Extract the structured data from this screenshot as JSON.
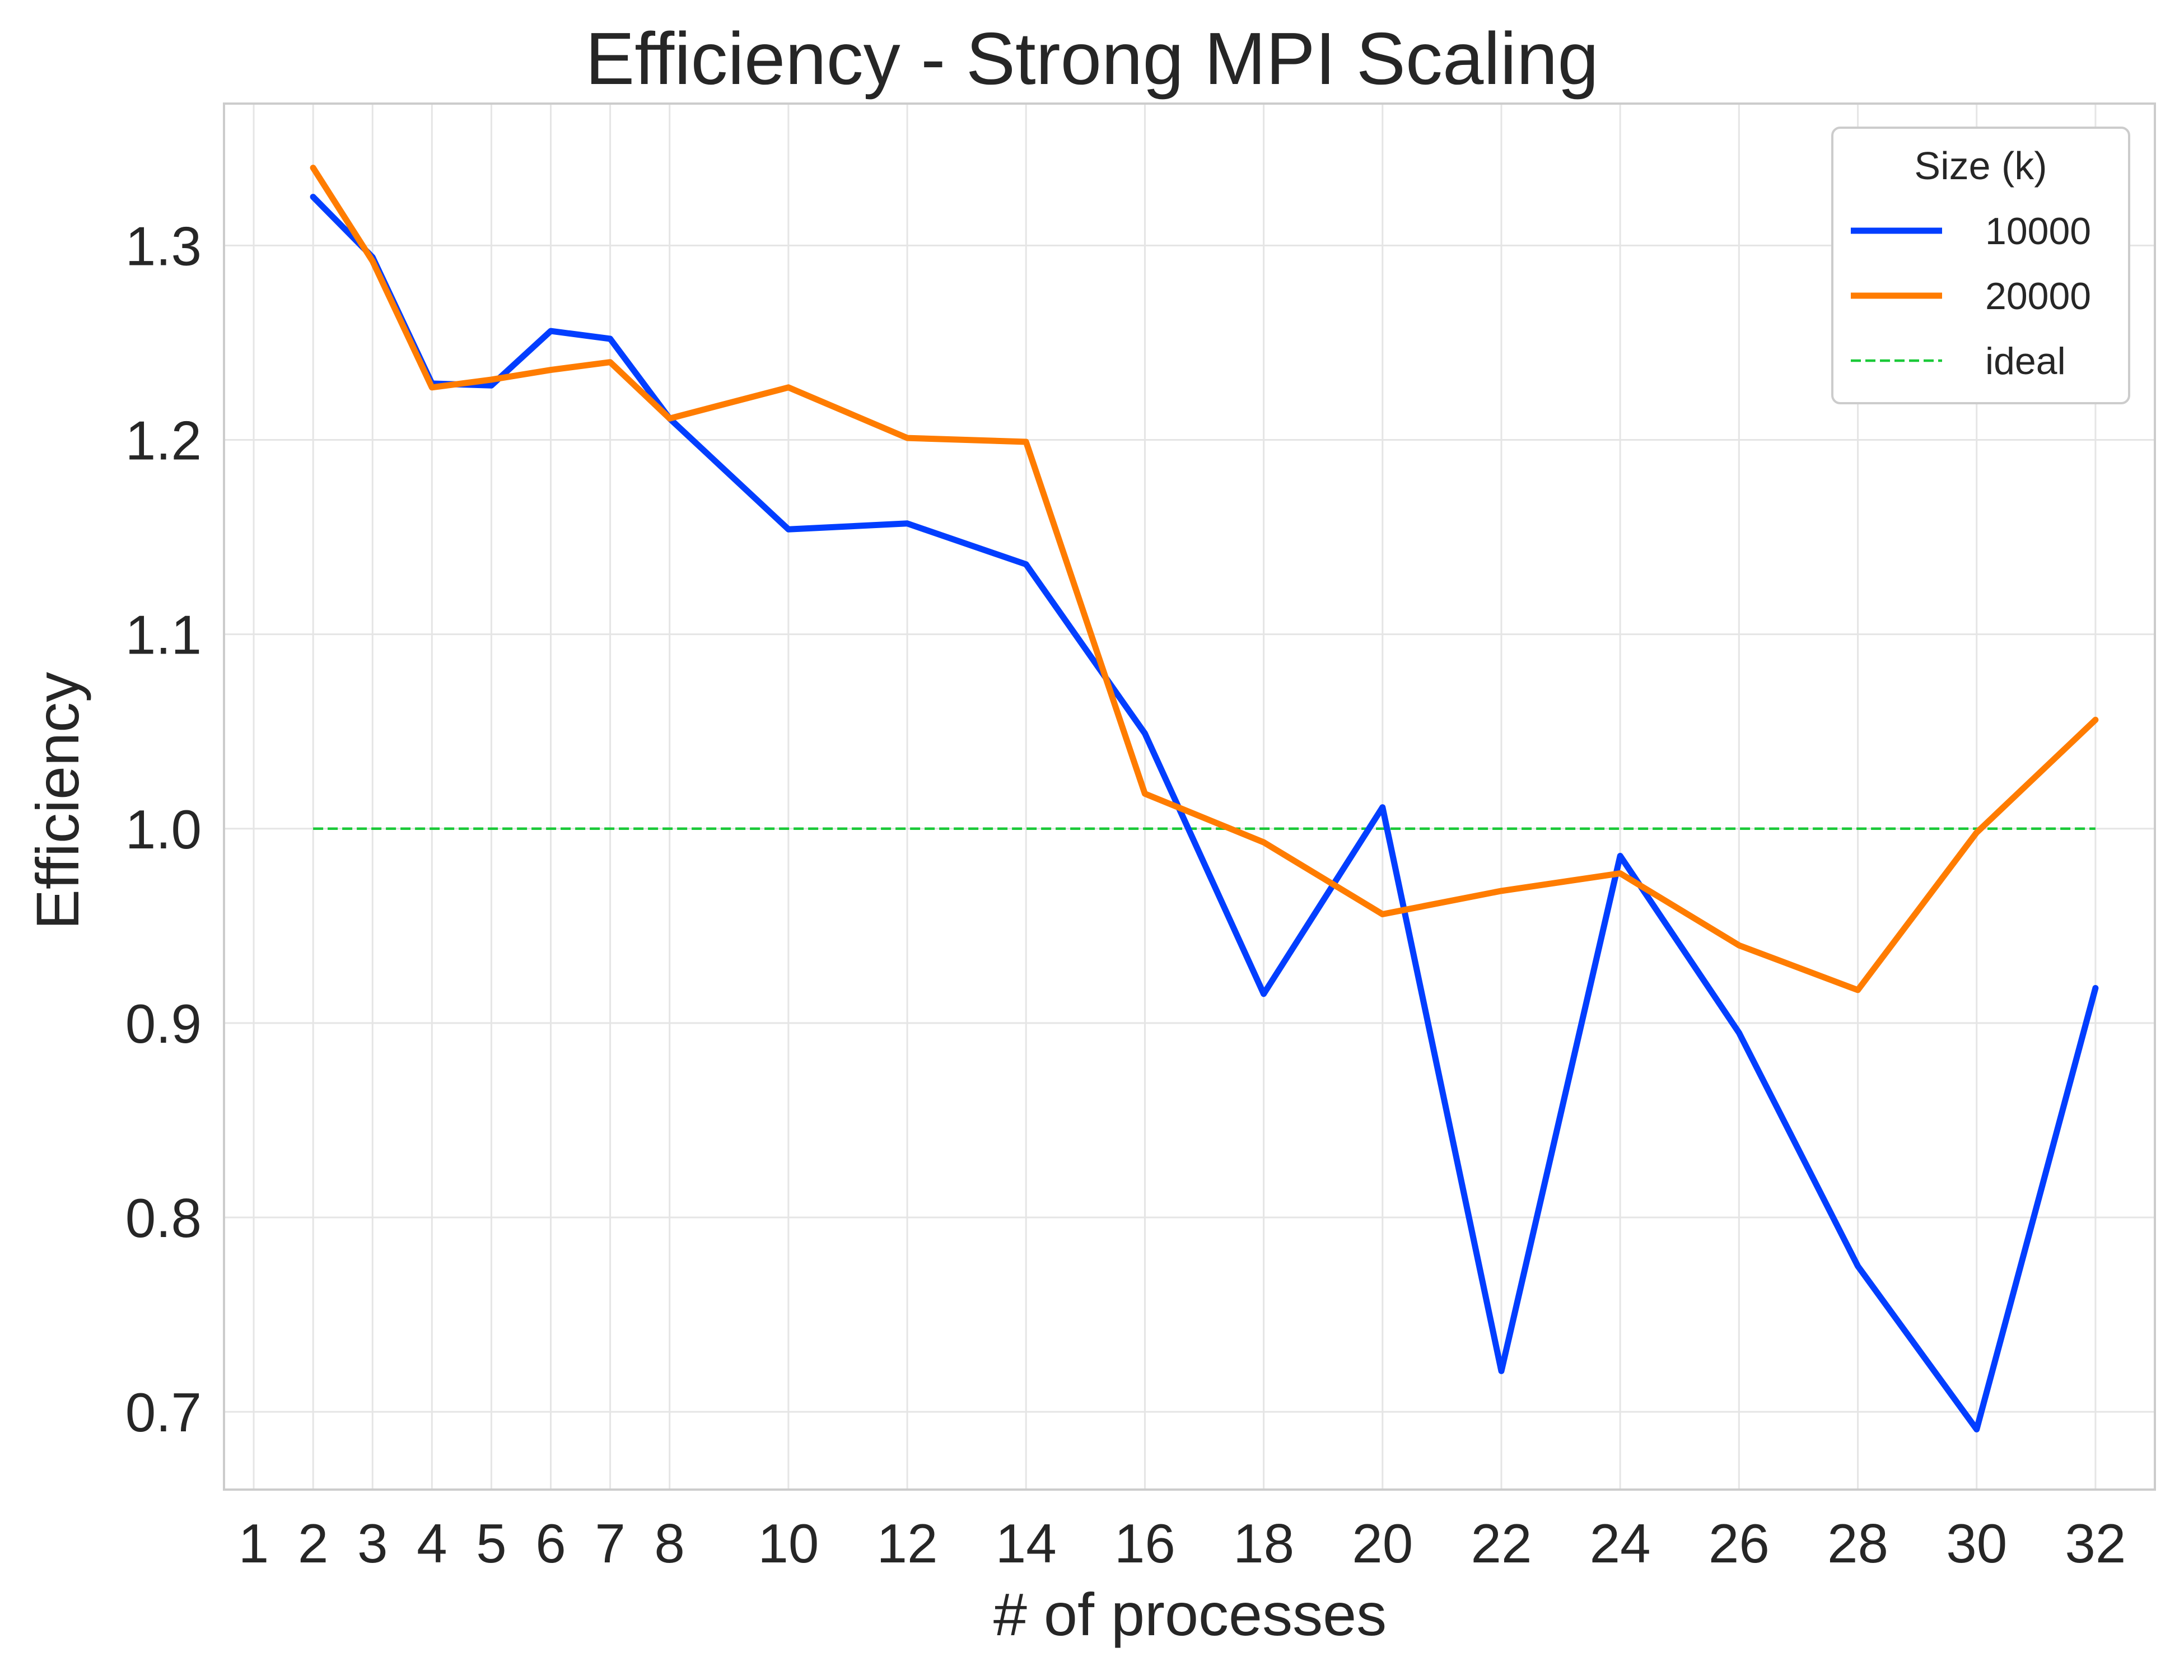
{
  "chart_data": {
    "type": "line",
    "title": "Efficiency - Strong MPI Scaling",
    "xlabel": "# of processes",
    "ylabel": "Efficiency",
    "x_ticks": [
      1,
      2,
      3,
      4,
      5,
      6,
      7,
      8,
      10,
      12,
      14,
      16,
      18,
      20,
      22,
      24,
      26,
      28,
      30,
      32
    ],
    "y_ticks": [
      0.7,
      0.8,
      0.9,
      1.0,
      1.1,
      1.2,
      1.3
    ],
    "y_tick_labels": [
      "0.7",
      "0.8",
      "0.9",
      "1.0",
      "1.1",
      "1.2",
      "1.3"
    ],
    "xlim": [
      0.5,
      33
    ],
    "ylim": [
      0.66,
      1.373
    ],
    "grid": true,
    "legend": {
      "title": "Size (k)",
      "placement": "top-right"
    },
    "x": [
      2,
      3,
      4,
      5,
      6,
      7,
      8,
      10,
      12,
      14,
      16,
      18,
      20,
      22,
      24,
      26,
      28,
      30,
      32
    ],
    "series": [
      {
        "name": "10000",
        "color": "#023eff",
        "style": "solid",
        "values": [
          1.325,
          1.294,
          1.229,
          1.228,
          1.256,
          1.252,
          1.211,
          1.154,
          1.157,
          1.136,
          1.049,
          0.915,
          1.011,
          0.721,
          0.986,
          0.895,
          0.775,
          0.691,
          0.918
        ]
      },
      {
        "name": "20000",
        "color": "#ff7c00",
        "style": "solid",
        "values": [
          1.34,
          1.292,
          1.227,
          1.231,
          1.236,
          1.24,
          1.211,
          1.227,
          1.201,
          1.199,
          1.018,
          0.993,
          0.956,
          0.968,
          0.977,
          0.94,
          0.917,
          0.998,
          1.056
        ]
      },
      {
        "name": "ideal",
        "color": "#1ac938",
        "style": "dashed",
        "values": [
          1.0,
          1.0,
          1.0,
          1.0,
          1.0,
          1.0,
          1.0,
          1.0,
          1.0,
          1.0,
          1.0,
          1.0,
          1.0,
          1.0,
          1.0,
          1.0,
          1.0,
          1.0,
          1.0
        ]
      }
    ]
  }
}
